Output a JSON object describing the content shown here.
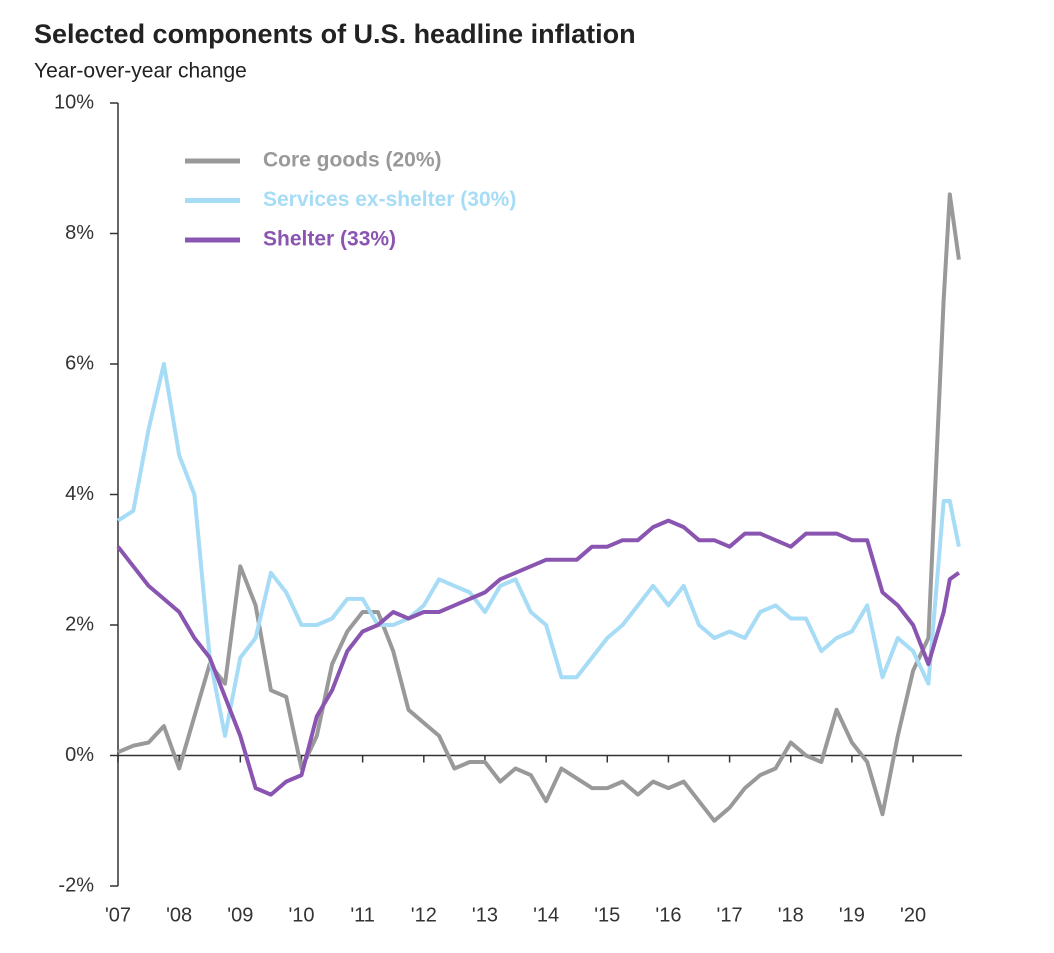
{
  "chart_data": {
    "type": "line",
    "title": "Selected components of U.S. headline inflation",
    "subtitle": "Year-over-year change",
    "x": [
      2007,
      2007.25,
      2007.5,
      2007.75,
      2008,
      2008.25,
      2008.5,
      2008.75,
      2009,
      2009.25,
      2009.5,
      2009.75,
      2010,
      2010.25,
      2010.5,
      2010.75,
      2011,
      2011.25,
      2011.5,
      2011.75,
      2012,
      2012.25,
      2012.5,
      2012.75,
      2013,
      2013.25,
      2013.5,
      2013.75,
      2014,
      2014.25,
      2014.5,
      2014.75,
      2015,
      2015.25,
      2015.5,
      2015.75,
      2016,
      2016.25,
      2016.5,
      2016.75,
      2017,
      2017.25,
      2017.5,
      2017.75,
      2018,
      2018.25,
      2018.5,
      2018.75,
      2019,
      2019.25,
      2019.5,
      2019.75,
      2020,
      2020.25,
      2020.5,
      2020.6,
      2020.75
    ],
    "series": [
      {
        "name": "Core goods (20%)",
        "color": "#999999",
        "values": [
          0.05,
          0.15,
          0.2,
          0.45,
          -0.2,
          0.6,
          1.4,
          1.1,
          2.9,
          2.3,
          1.0,
          0.9,
          -0.2,
          0.3,
          1.4,
          1.9,
          2.2,
          2.2,
          1.6,
          0.7,
          0.5,
          0.3,
          -0.2,
          -0.1,
          -0.1,
          -0.4,
          -0.2,
          -0.3,
          -0.7,
          -0.2,
          -0.35,
          -0.5,
          -0.5,
          -0.4,
          -0.6,
          -0.4,
          -0.5,
          -0.4,
          -0.7,
          -1.0,
          -0.8,
          -0.5,
          -0.3,
          -0.2,
          0.2,
          0.0,
          -0.1,
          0.7,
          0.2,
          -0.1,
          -0.9,
          0.3,
          1.3,
          1.8,
          7.0,
          8.6,
          7.6
        ]
      },
      {
        "name": "Services ex-shelter (30%)",
        "color": "#a6dcf5",
        "values": [
          3.6,
          3.75,
          5.0,
          6.0,
          4.6,
          4.0,
          1.5,
          0.3,
          1.5,
          1.8,
          2.8,
          2.5,
          2.0,
          2.0,
          2.1,
          2.4,
          2.4,
          2.0,
          2.0,
          2.1,
          2.3,
          2.7,
          2.6,
          2.5,
          2.2,
          2.6,
          2.7,
          2.2,
          2.0,
          1.2,
          1.2,
          1.5,
          1.8,
          2.0,
          2.3,
          2.6,
          2.3,
          2.6,
          2.0,
          1.8,
          1.9,
          1.8,
          2.2,
          2.3,
          2.1,
          2.1,
          1.6,
          1.8,
          1.9,
          2.3,
          1.2,
          1.8,
          1.6,
          1.1,
          3.9,
          3.9,
          3.2
        ]
      },
      {
        "name": "Shelter (33%)",
        "color": "#8a55b0",
        "values": [
          3.2,
          2.9,
          2.6,
          2.4,
          2.2,
          1.8,
          1.5,
          0.9,
          0.3,
          -0.5,
          -0.6,
          -0.4,
          -0.3,
          0.6,
          1.0,
          1.6,
          1.9,
          2.0,
          2.2,
          2.1,
          2.2,
          2.2,
          2.3,
          2.4,
          2.5,
          2.7,
          2.8,
          2.9,
          3.0,
          3.0,
          3.0,
          3.2,
          3.2,
          3.3,
          3.3,
          3.5,
          3.6,
          3.5,
          3.3,
          3.3,
          3.2,
          3.4,
          3.4,
          3.3,
          3.2,
          3.4,
          3.4,
          3.4,
          3.3,
          3.3,
          2.5,
          2.3,
          2.0,
          1.4,
          2.2,
          2.7,
          2.8
        ]
      }
    ],
    "xlim": [
      2007,
      2020.8
    ],
    "xticks": [
      {
        "value": 2007,
        "label": "'07"
      },
      {
        "value": 2008,
        "label": "'08"
      },
      {
        "value": 2009,
        "label": "'09"
      },
      {
        "value": 2010,
        "label": "'10"
      },
      {
        "value": 2011,
        "label": "'11"
      },
      {
        "value": 2012,
        "label": "'12"
      },
      {
        "value": 2013,
        "label": "'13"
      },
      {
        "value": 2014,
        "label": "'14"
      },
      {
        "value": 2015,
        "label": "'15"
      },
      {
        "value": 2016,
        "label": "'16"
      },
      {
        "value": 2017,
        "label": "'17"
      },
      {
        "value": 2018,
        "label": "'18"
      },
      {
        "value": 2019,
        "label": "'19"
      },
      {
        "value": 2020,
        "label": "'20"
      }
    ],
    "ylim": [
      -2,
      10
    ],
    "yticks": [
      {
        "value": -2,
        "label": "-2%"
      },
      {
        "value": 0,
        "label": "0%"
      },
      {
        "value": 2,
        "label": "2%"
      },
      {
        "value": 4,
        "label": "4%"
      },
      {
        "value": 6,
        "label": "6%"
      },
      {
        "value": 8,
        "label": "8%"
      },
      {
        "value": 10,
        "label": "10%"
      }
    ],
    "legend": "upper-left"
  }
}
